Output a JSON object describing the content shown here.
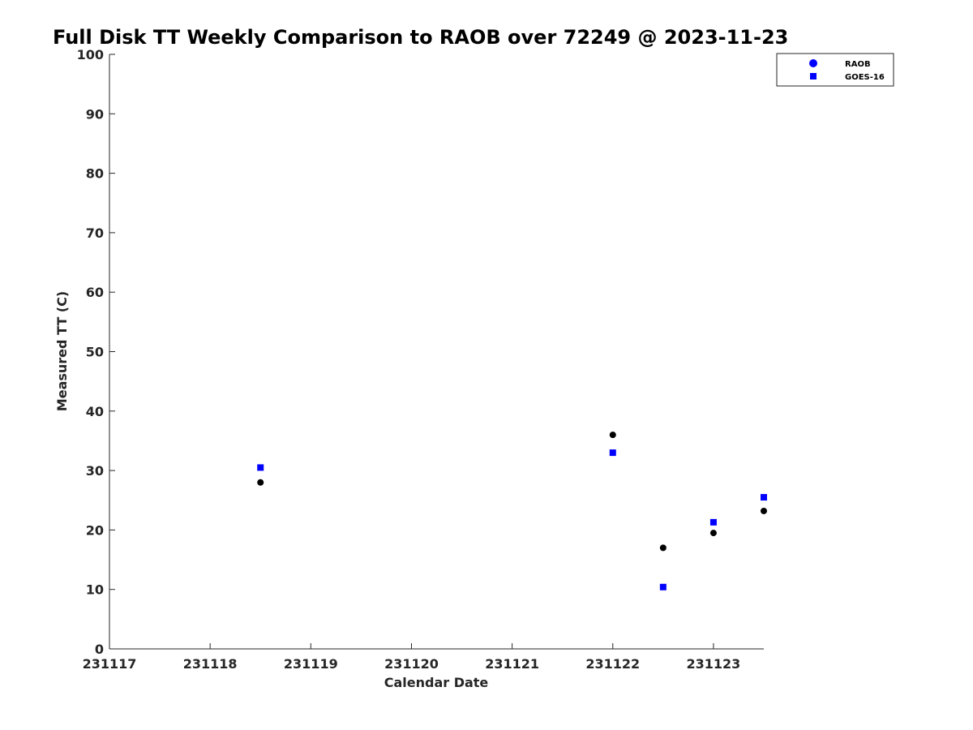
{
  "chart_data": {
    "type": "scatter",
    "title": "Full Disk TT Weekly Comparison to RAOB over 72249 @ 2023-11-23",
    "xlabel": "Calendar Date",
    "ylabel": "Measured TT (C)",
    "xlim": [
      "231117",
      "231123.5"
    ],
    "ylim": [
      0,
      100
    ],
    "x_tick_labels": [
      "231117",
      "231118",
      "231119",
      "231120",
      "231121",
      "231122",
      "231123"
    ],
    "y_ticks": [
      0,
      10,
      20,
      30,
      40,
      50,
      60,
      70,
      80,
      90,
      100
    ],
    "grid": false,
    "legend_position": "top-right",
    "series": [
      {
        "name": "RAOB",
        "marker": "circle",
        "color": "#000000",
        "legend_color": "#0000ff",
        "points": [
          {
            "x": "231118 12Z",
            "y": 28.0
          },
          {
            "x": "231122 00Z",
            "y": 36.0
          },
          {
            "x": "231122 12Z",
            "y": 17.0
          },
          {
            "x": "231123 00Z",
            "y": 19.5
          },
          {
            "x": "231123 12Z",
            "y": 23.2
          }
        ]
      },
      {
        "name": "GOES-16",
        "marker": "square",
        "color": "#0000ff",
        "legend_color": "#0000ff",
        "points": [
          {
            "x": "231118 12Z",
            "y": 30.5
          },
          {
            "x": "231122 00Z",
            "y": 33.0
          },
          {
            "x": "231122 12Z",
            "y": 10.4
          },
          {
            "x": "231123 00Z",
            "y": 21.3
          },
          {
            "x": "231123 12Z",
            "y": 25.5
          }
        ]
      }
    ]
  }
}
